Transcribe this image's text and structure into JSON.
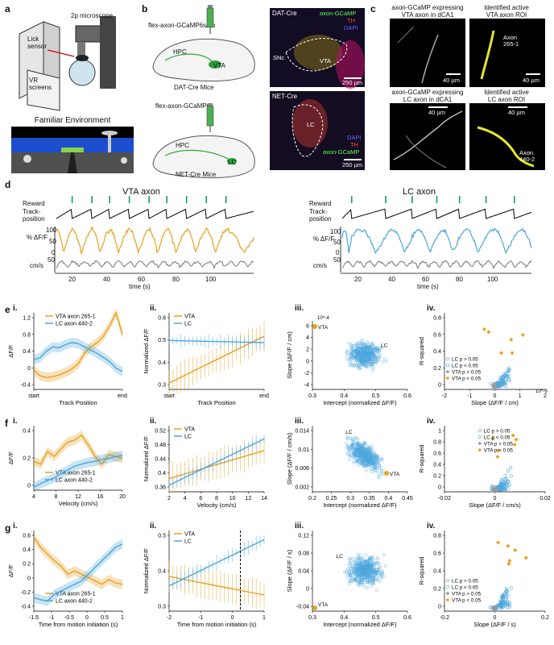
{
  "panel_labels": {
    "a": "a",
    "b": "b",
    "c": "c",
    "d": "d",
    "e": "e",
    "f": "f",
    "g": "g"
  },
  "panel_a": {
    "microscope": "2p microscope",
    "lick_sensor": "Lick\nsensor",
    "vr_screens": "VR\nscreens",
    "familiar": "Familiar Environment"
  },
  "panel_b": {
    "injection_top": "flex-axon-GCaMP6s/7b",
    "injection_bottom": "flex-axon-GCaMP6s",
    "hpc": "HPC",
    "vta": "VTA",
    "lc": "LC",
    "mouse_top": "DAT-Cre Mice",
    "mouse_bottom": "NET-Cre Mice",
    "img_top_title": "DAT-Cre",
    "img_top_gcamp": "axon-GCaMP",
    "img_top_th": "TH",
    "img_top_dapi": "DAPI",
    "img_top_snc": "SNc",
    "img_top_vta": "VTA",
    "img_top_scale": "250 µm",
    "img_bot_title": "NET-Cre",
    "img_bot_dapi": "DAPI",
    "img_bot_th": "TH",
    "img_bot_gcamp": "axon-GCaMP",
    "img_bot_lc": "LC",
    "img_bot_scale": "250 µm"
  },
  "panel_c": {
    "t1": "axon-GCaMP expressing\nVTA axon in dCA1",
    "t2": "Identified active\nVTA axon ROI",
    "t3": "axon-GCaMP expressing\nLC axon in dCA1",
    "t4": "Identified active\nLC axon ROI",
    "scale": "40 µm",
    "axon1": "Axon\n265-1",
    "axon2": "Axon\n440-2"
  },
  "panel_d": {
    "vta_title": "VTA axon",
    "lc_title": "LC axon",
    "reward": "Reward",
    "track": "Track-\nposition",
    "dff": "% ΔF/F",
    "cms": "cm/s",
    "time_label": "time (s)",
    "vta_ticks": [
      "20",
      "40",
      "60",
      "80",
      "100"
    ],
    "lc_ticks": [
      "20",
      "40",
      "60",
      "80",
      "100"
    ],
    "yticks": [
      "100",
      "50",
      "0"
    ],
    "speed_tick": "50"
  },
  "colors": {
    "vta": "#e8a020",
    "lc": "#4ba6dc",
    "gray": "#777777"
  },
  "chart_data": [
    {
      "id": "e-i",
      "type": "line",
      "title": "",
      "xlabel": "Track Position",
      "ylabel": "ΔF/F",
      "xticks": [
        "start",
        "end"
      ],
      "yticks": [
        "1.2",
        "0.8",
        "0.4",
        "0",
        "-0.4"
      ],
      "ylim": [
        -0.4,
        1.4
      ],
      "series": [
        {
          "name": "VTA axon 265-1",
          "values": [
            0.05,
            -0.08,
            -0.12,
            -0.1,
            -0.06,
            0.0,
            0.08,
            0.2,
            0.45,
            0.6,
            0.7,
            0.85,
            1.1,
            1.4,
            0.9
          ]
        },
        {
          "name": "LC axon 440-2",
          "values": [
            0.3,
            0.35,
            0.5,
            0.6,
            0.58,
            0.65,
            0.7,
            0.68,
            0.6,
            0.52,
            0.45,
            0.35,
            0.25,
            0.1,
            0.02
          ]
        }
      ]
    },
    {
      "id": "e-ii",
      "type": "line",
      "xlabel": "Track Position",
      "ylabel": "Normalized ΔF/F",
      "xticks": [
        "start",
        "end"
      ],
      "yticks": [
        "0.6",
        "0.5",
        "0.4",
        "0.3"
      ],
      "ylim": [
        0.27,
        0.63
      ],
      "series": [
        {
          "name": "VTA",
          "values": [
            0.3,
            0.52
          ]
        },
        {
          "name": "LC",
          "values": [
            0.5,
            0.49
          ]
        }
      ]
    },
    {
      "id": "e-iii",
      "type": "scatter",
      "xlabel": "Intercept (normalized ΔF/F)",
      "ylabel": "Slope (ΔF/F / cm)",
      "exponent": "10^-4",
      "xticks": [
        "0.3",
        "0.4",
        "0.5",
        "0.6"
      ],
      "yticks": [
        "6",
        "4",
        "2",
        "0",
        "-2",
        "-4"
      ],
      "xlim": [
        0.28,
        0.62
      ],
      "ylim": [
        -4.5,
        7.5
      ],
      "annotations": [
        "VTA",
        "LC"
      ]
    },
    {
      "id": "e-iv",
      "type": "scatter",
      "xlabel": "Slope (ΔF/F / cm)",
      "ylabel": "R-squared",
      "exponent": "10^-3",
      "xticks": [
        "-2",
        "-1",
        "0",
        "1",
        "2"
      ],
      "yticks": [
        "0.8",
        "0.6",
        "0.4",
        "0.2",
        "0"
      ],
      "xlim": [
        -2.7,
        2.7
      ],
      "ylim": [
        0,
        0.9
      ],
      "legend": [
        "LC p > 0.05",
        "LC p < 0.05",
        "VTA p > 0.05",
        "VTA p < 0.05"
      ]
    },
    {
      "id": "f-i",
      "type": "line",
      "xlabel": "Velocity (cm/s)",
      "ylabel": "ΔF/F",
      "xticks": [
        "4",
        "8",
        "12",
        "16",
        "20"
      ],
      "yticks": [
        "0.4",
        "0.2",
        "0"
      ],
      "ylim": [
        -0.05,
        0.62
      ],
      "series": [
        {
          "name": "VTA axon 265-1",
          "values": [
            0.25,
            0.22,
            0.35,
            0.3,
            0.38,
            0.45,
            0.47,
            0.52,
            0.42,
            0.3,
            0.22,
            0.32,
            0.3,
            0.28
          ]
        },
        {
          "name": "LC axon 440-2",
          "values": [
            -0.02,
            0.02,
            0.05,
            0.08,
            0.12,
            0.16,
            0.2,
            0.22,
            0.24,
            0.25,
            0.27,
            0.28,
            0.3,
            0.31
          ]
        }
      ]
    },
    {
      "id": "f-ii",
      "type": "line",
      "xlabel": "Velocity (cm/s)",
      "ylabel": "Normalized ΔF/F",
      "xticks": [
        "2",
        "4",
        "6",
        "8",
        "10",
        "12",
        "14"
      ],
      "yticks": [
        "0.52",
        "0.48",
        "0.44",
        "0.4",
        "0.36"
      ],
      "ylim": [
        0.33,
        0.53
      ],
      "series": [
        {
          "name": "VTA",
          "values": [
            0.37,
            0.455
          ]
        },
        {
          "name": "LC",
          "values": [
            0.35,
            0.49
          ]
        }
      ]
    },
    {
      "id": "f-iii",
      "type": "scatter",
      "xlabel": "Intercept (normalized ΔF/F)",
      "ylabel": "Slope (ΔF/F / cm/s)",
      "xticks": [
        "0.2",
        "0.25",
        "0.3",
        "0.35",
        "0.4",
        "0.45"
      ],
      "yticks": [
        "0.014",
        "0.01",
        "0.006",
        "0.002"
      ],
      "xlim": [
        0.2,
        0.46
      ],
      "ylim": [
        0,
        0.016
      ],
      "annotations": [
        "LC",
        "VTA"
      ]
    },
    {
      "id": "f-iv",
      "type": "scatter",
      "xlabel": "Slope (ΔF/F / cm/s)",
      "ylabel": "R-squared",
      "xticks": [
        "-0.02",
        "0",
        "0.02"
      ],
      "yticks": [
        "1",
        "0.8",
        "0.6",
        "0.4",
        "0.2",
        "0"
      ],
      "xlim": [
        -0.03,
        0.035
      ],
      "ylim": [
        0,
        1
      ],
      "legend": [
        "LC p > 0.05",
        "LC p < 0.05",
        "VTA p > 0.05",
        "VTA p < 0.05"
      ]
    },
    {
      "id": "g-i",
      "type": "line",
      "xlabel": "Time from motion initiation (s)",
      "ylabel": "ΔF/F",
      "xticks": [
        "-1.5",
        "-1",
        "-0.5",
        "0",
        "0.5",
        "1"
      ],
      "yticks": [
        "0.6",
        "0.4",
        "0.2",
        "0",
        "-0.2",
        "-0.4"
      ],
      "ylim": [
        -0.45,
        0.75
      ],
      "series": [
        {
          "name": "VTA axon 265-1",
          "values": [
            0.65,
            0.5,
            0.4,
            0.3,
            0.22,
            0.1,
            0.15,
            0.1,
            0.05,
            0.0,
            -0.05,
            0.02,
            -0.03,
            -0.05
          ]
        },
        {
          "name": "LC axon 440-2",
          "values": [
            -0.25,
            -0.28,
            -0.3,
            -0.2,
            -0.15,
            -0.1,
            -0.05,
            0.0,
            0.1,
            0.2,
            0.3,
            0.4,
            0.5,
            0.55
          ]
        }
      ]
    },
    {
      "id": "g-ii",
      "type": "line",
      "xlabel": "Time from motion initiation (s)",
      "ylabel": "Normalized ΔF/F",
      "xticks": [
        "-2",
        "-1",
        "0",
        "1"
      ],
      "yticks": [
        "0.5",
        "0.4",
        "0.3"
      ],
      "ylim": [
        0.22,
        0.57
      ],
      "series": [
        {
          "name": "VTA",
          "values": [
            0.37,
            0.29
          ]
        },
        {
          "name": "LC",
          "values": [
            0.33,
            0.53
          ]
        }
      ]
    },
    {
      "id": "g-iii",
      "type": "scatter",
      "xlabel": "Intercept (normalized ΔF/F)",
      "ylabel": "Slope (ΔF/F / s)",
      "xticks": [
        "0.3",
        "0.4",
        "0.5",
        "0.6"
      ],
      "yticks": [
        "0.12",
        "0.08",
        "0.04",
        "0",
        "-0.04"
      ],
      "xlim": [
        0.28,
        0.62
      ],
      "ylim": [
        -0.05,
        0.14
      ],
      "annotations": [
        "LC",
        "VTA"
      ]
    },
    {
      "id": "g-iv",
      "type": "scatter",
      "xlabel": "Slope (ΔF/F / s)",
      "ylabel": "R-squared",
      "xticks": [
        "-0.2",
        "0",
        "0.2"
      ],
      "yticks": [
        "0.8",
        "0.6",
        "0.4",
        "0.2",
        "0"
      ],
      "xlim": [
        -0.3,
        0.3
      ],
      "ylim": [
        0,
        0.9
      ],
      "legend": [
        "LC p > 0.05",
        "LC p < 0.05",
        "VTA p > 0.05",
        "VTA p < 0.05"
      ]
    }
  ],
  "sub_labels": {
    "i": "i.",
    "ii": "ii.",
    "iii": "iii.",
    "iv": "iv."
  }
}
